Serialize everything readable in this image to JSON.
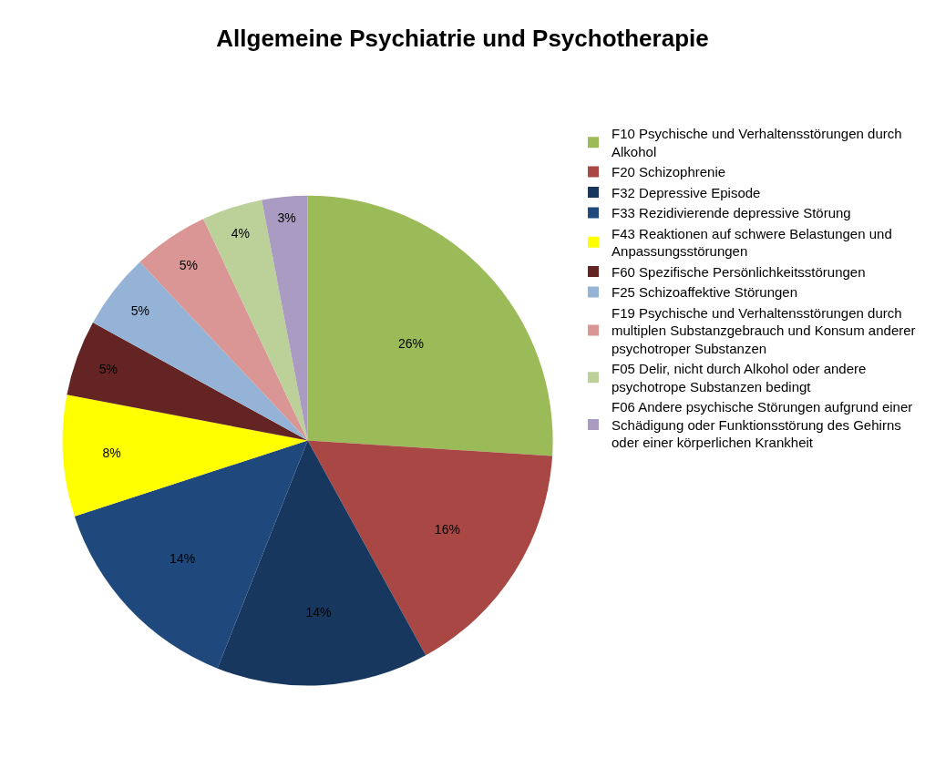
{
  "chart_data": {
    "type": "pie",
    "title": "Allgemeine Psychiatrie und Psychotherapie",
    "categories": [
      "F10 Psychische und Verhaltensstörungen durch Alkohol",
      "F20 Schizophrenie",
      "F32 Depressive Episode",
      "F33 Rezidivierende depressive Störung",
      "F43 Reaktionen auf schwere Belastungen und Anpassungsstörungen",
      "F60 Spezifische Persönlichkeitsstörungen",
      "F25 Schizoaffektive Störungen",
      "F19 Psychische und Verhaltensstörungen durch multiplen Substanzgebrauch und Konsum anderer psychotroper Substanzen",
      "F05 Delir, nicht durch Alkohol oder andere psychotrope Substanzen bedingt",
      "F06 Andere psychische Störungen aufgrund einer Schädigung oder Funktionsstörung des Gehirns oder einer körperlichen Krankheit"
    ],
    "values": [
      26,
      16,
      14,
      14,
      8,
      5,
      5,
      5,
      4,
      3
    ],
    "value_labels": [
      "26%",
      "16%",
      "14%",
      "14%",
      "8%",
      "5%",
      "5%",
      "5%",
      "4%",
      "3%"
    ],
    "colors": [
      "#9bbb59",
      "#a84744",
      "#17375e",
      "#1f497d",
      "#ffff00",
      "#632423",
      "#95b3d7",
      "#d99694",
      "#bcd09a",
      "#a99bc2"
    ],
    "legend": "right"
  }
}
